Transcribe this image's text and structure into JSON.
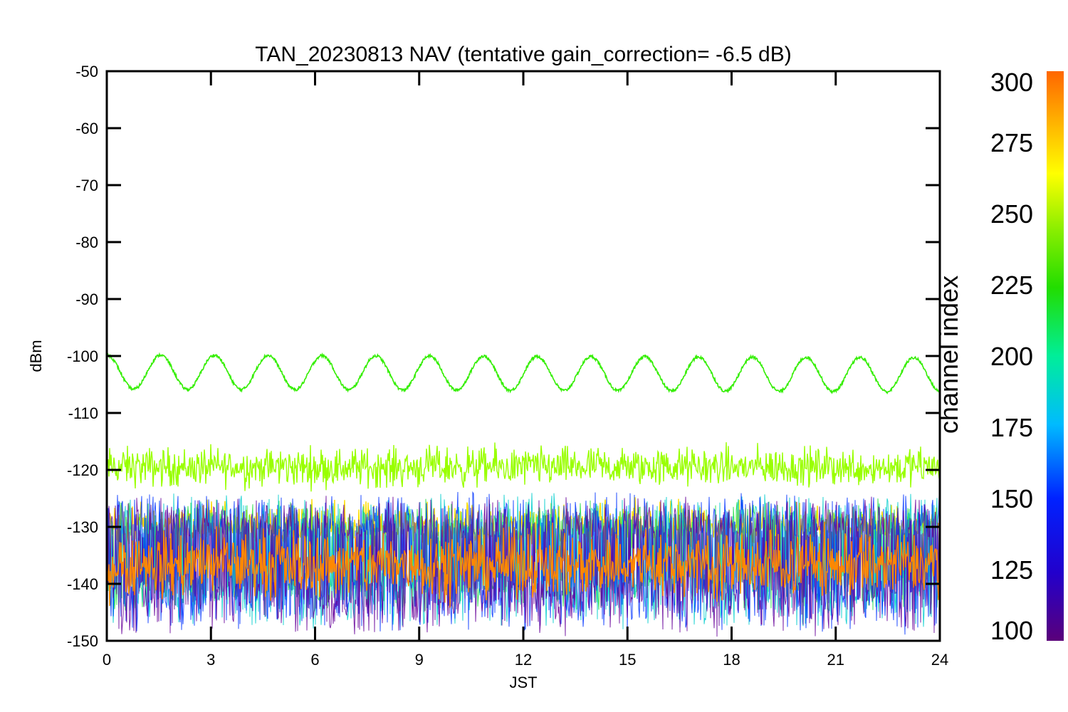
{
  "chart_data": {
    "type": "line",
    "title": "TAN_20230813 NAV (tentative gain_correction= -6.5 dB)",
    "xlabel": "JST",
    "ylabel": "dBm",
    "xlim": [
      0,
      24
    ],
    "ylim": [
      -150,
      -50
    ],
    "xticks": [
      "0",
      "3",
      "6",
      "9",
      "12",
      "15",
      "18",
      "21",
      "24"
    ],
    "yticks": [
      "-50",
      "-60",
      "-70",
      "-80",
      "-90",
      "-100",
      "-110",
      "-120",
      "-130",
      "-140",
      "-150"
    ],
    "grid": false,
    "colorbar": {
      "label": "channel index",
      "range": [
        100,
        300
      ],
      "ticks": [
        "300",
        "275",
        "250",
        "225",
        "200",
        "175",
        "150",
        "125",
        "100"
      ],
      "colormap": "rainbow (violet-blue-cyan-green-yellow-orange)"
    },
    "series": [
      {
        "approx_channel": 240,
        "color": "#33ee00",
        "shape": "sinusoid",
        "mean": -102.8,
        "amplitude": 3.0,
        "period_hours": 1.55,
        "peak_at_x": 0.0,
        "x": [
          0,
          0.4,
          0.78,
          1.16,
          1.55,
          1.94,
          2.33,
          2.71,
          3.1,
          3.5,
          3.88,
          4.26,
          4.65,
          5.04,
          5.43,
          5.81,
          6.2,
          6.6,
          6.98,
          7.36,
          7.75,
          8.14,
          8.53,
          8.91,
          9.3,
          9.7,
          10.08,
          10.46,
          10.85,
          11.24,
          11.63,
          12.01,
          12.4,
          12.8,
          13.18,
          13.56,
          13.95,
          14.34,
          14.73,
          15.11,
          15.5,
          15.9,
          16.28,
          16.66,
          17.05,
          17.44,
          17.83,
          18.21,
          18.6,
          19.0,
          19.38,
          19.76,
          20.15,
          20.54,
          20.93,
          21.31,
          21.7,
          22.1,
          22.48,
          22.86,
          23.25,
          23.64,
          24
        ],
        "y": [
          -99.9,
          -102.8,
          -105.6,
          -102.8,
          -99.9,
          -102.8,
          -105.7,
          -102.8,
          -99.9,
          -102.8,
          -105.7,
          -102.8,
          -99.9,
          -102.9,
          -105.7,
          -102.8,
          -99.9,
          -102.9,
          -105.8,
          -102.9,
          -100.0,
          -103.0,
          -105.8,
          -102.9,
          -100.0,
          -103.0,
          -105.9,
          -103.0,
          -100.1,
          -103.1,
          -105.9,
          -103.1,
          -100.1,
          -103.1,
          -106.0,
          -103.1,
          -100.2,
          -103.2,
          -106.1,
          -103.2,
          -100.3,
          -103.3,
          -106.1,
          -103.2,
          -100.4,
          -103.3,
          -106.2,
          -103.3,
          -100.5,
          -103.4,
          -106.2,
          -103.4,
          -100.5,
          -103.4,
          -106.3,
          -103.4,
          -100.6,
          -103.5,
          -106.3,
          -103.5,
          -100.6,
          -103.3,
          -100.7
        ]
      },
      {
        "approx_channel": 255,
        "color": "#99ff00",
        "shape": "noise band",
        "mean": -119.5,
        "min": -123.5,
        "max": -113.5
      },
      {
        "approx_channel": 270,
        "color": "#ffdd00",
        "shape": "noise band",
        "mean": -130.0,
        "min": -136.0,
        "max": -124.0
      },
      {
        "approx_channel": 290,
        "color": "#ff8800",
        "shape": "noise band",
        "mean": -136.5,
        "min": -143.5,
        "max": -127.0
      },
      {
        "approx_channel": 225,
        "color": "#22dd44",
        "shape": "noise band",
        "mean": -135.0,
        "min": -145.0,
        "max": -125.0
      },
      {
        "approx_channel": 190,
        "color": "#00cccc",
        "shape": "noise band",
        "mean": -135.0,
        "min": -148.0,
        "max": -124.0
      },
      {
        "approx_channel": 140,
        "color": "#0033ff",
        "shape": "noise band",
        "mean": -135.0,
        "min": -149.0,
        "max": -123.5
      },
      {
        "approx_channel": 110,
        "color": "#660099",
        "shape": "noise band",
        "mean": -135.0,
        "min": -149.5,
        "max": -124.5
      }
    ]
  }
}
